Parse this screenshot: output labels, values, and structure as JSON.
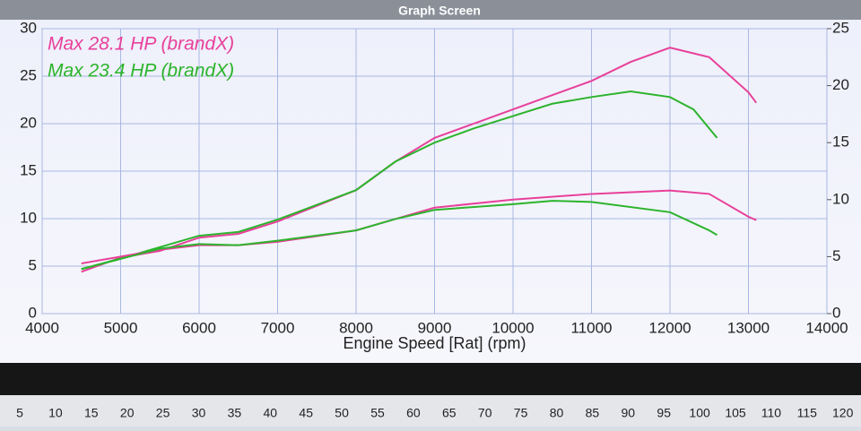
{
  "window_title": "Graph Screen",
  "chart_data": {
    "type": "line",
    "xlabel": "Engine Speed [Rat] (rpm)",
    "xlim": [
      4000,
      14000
    ],
    "xticks": [
      4000,
      5000,
      6000,
      7000,
      8000,
      9000,
      10000,
      11000,
      12000,
      13000,
      14000
    ],
    "ylim": [
      0,
      30
    ],
    "yticks": [
      0,
      5,
      10,
      15,
      20,
      25,
      30
    ],
    "y2lim": [
      0,
      25
    ],
    "y2ticks": [
      0,
      5,
      10,
      15,
      20,
      25
    ],
    "grid": true,
    "legend": "top-left",
    "series": [
      {
        "name": "Max 28.1 HP (brandX)",
        "color": "#e8409a",
        "x": [
          4500,
          5000,
          5500,
          6000,
          6500,
          7000,
          8000,
          8500,
          9000,
          10000,
          11000,
          11500,
          12000,
          12500,
          13000,
          13100
        ],
        "values": [
          4.4,
          5.9,
          6.6,
          8.0,
          8.4,
          9.7,
          13.0,
          16.0,
          18.5,
          21.5,
          24.5,
          26.5,
          28.0,
          27.0,
          23.3,
          22.2
        ]
      },
      {
        "name": "Max 23.4 HP (brandX)",
        "color": "#2cb42c",
        "x": [
          4500,
          5000,
          5500,
          6000,
          6500,
          7000,
          8000,
          8500,
          9000,
          9500,
          10000,
          10500,
          11000,
          11500,
          12000,
          12300,
          12600
        ],
        "values": [
          4.7,
          5.8,
          7.0,
          8.2,
          8.6,
          9.9,
          13.0,
          16.0,
          18.0,
          19.5,
          20.8,
          22.1,
          22.8,
          23.4,
          22.8,
          21.5,
          18.5
        ]
      },
      {
        "color": "#e8409a",
        "axis": "y2",
        "x": [
          4500,
          5000,
          5500,
          6000,
          6500,
          7000,
          8000,
          8500,
          9000,
          10000,
          11000,
          12000,
          12500,
          13000,
          13100
        ],
        "values": [
          4.4,
          5.0,
          5.6,
          6.0,
          6.0,
          6.3,
          7.3,
          8.3,
          9.3,
          10.0,
          10.5,
          10.8,
          10.5,
          8.5,
          8.2
        ]
      },
      {
        "color": "#2cb42c",
        "axis": "y2",
        "x": [
          4500,
          5000,
          5500,
          6000,
          6500,
          7000,
          8000,
          8500,
          9000,
          10000,
          10500,
          11000,
          12000,
          12500,
          12600
        ],
        "values": [
          3.9,
          4.8,
          5.7,
          6.1,
          6.0,
          6.4,
          7.3,
          8.3,
          9.1,
          9.6,
          9.9,
          9.8,
          8.9,
          7.3,
          6.9
        ]
      }
    ]
  },
  "bottom_scale": [
    5,
    10,
    15,
    20,
    25,
    30,
    35,
    40,
    45,
    50,
    55,
    60,
    65,
    70,
    75,
    80,
    85,
    90,
    95,
    100,
    105,
    110,
    115,
    120
  ]
}
